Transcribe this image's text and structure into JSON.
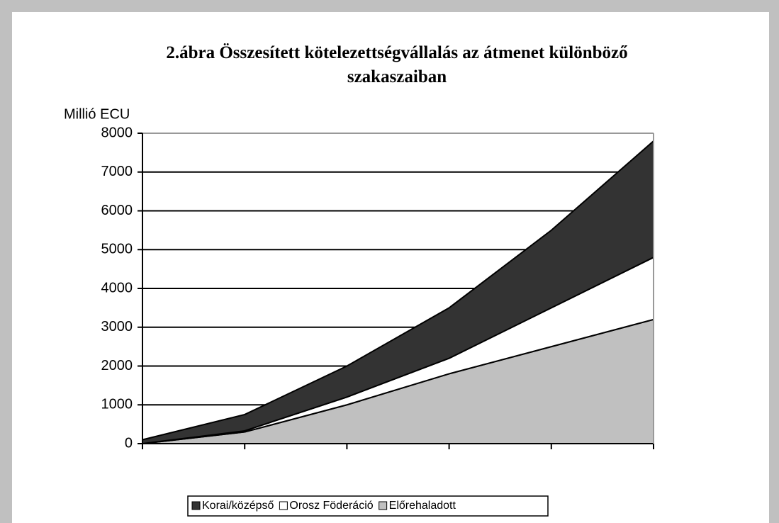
{
  "chart_data": {
    "type": "stacked-area",
    "title": "2.ábra Összesített kötelezettségvállalás az átmenet különböző szakaszaiban",
    "y_label": "Millió ECU",
    "categories": [
      null,
      null,
      null,
      null,
      null,
      null
    ],
    "series": [
      {
        "name": "Korai/középső",
        "color": "#333333",
        "values": [
          100,
          420,
          800,
          1300,
          2000,
          3000
        ]
      },
      {
        "name": "Orosz Föderáció",
        "color": "#ffffff",
        "values": [
          0,
          30,
          200,
          400,
          1000,
          1600
        ]
      },
      {
        "name": "Előrehaladott",
        "color": "#c0c0c0",
        "values": [
          0,
          300,
          1000,
          1800,
          2500,
          3200
        ]
      }
    ],
    "ylim": [
      0,
      8000
    ],
    "yticks": [
      0,
      1000,
      2000,
      3000,
      4000,
      5000,
      6000,
      7000,
      8000
    ],
    "grid": true,
    "legend": "bottom"
  }
}
